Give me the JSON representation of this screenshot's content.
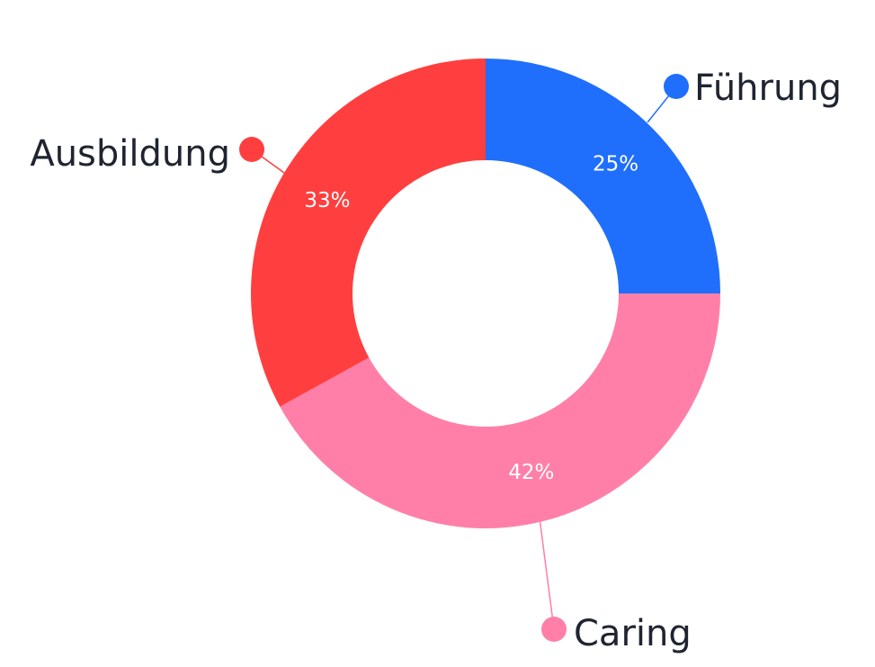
{
  "chart_data": {
    "type": "pie",
    "variant": "donut",
    "title": "",
    "slices": [
      {
        "label": "Führung",
        "value": 25,
        "value_label": "25%",
        "color": "#1f6ffc"
      },
      {
        "label": "Caring",
        "value": 42,
        "value_label": "42%",
        "color": "#ff7fa8"
      },
      {
        "label": "Ausbildung",
        "value": 33,
        "value_label": "33%",
        "color": "#ff3f3f"
      }
    ],
    "start_angle": "12 o'clock",
    "direction": "clockwise",
    "legend": "none (external callout labels with colored dots)"
  }
}
